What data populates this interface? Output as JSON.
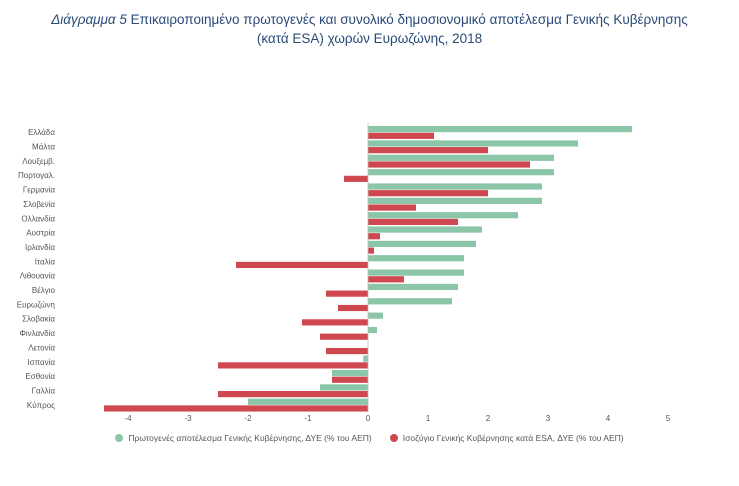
{
  "title": {
    "label": "Διάγραμμα 5",
    "line1": "Επικαιροποιημένο πρωτογενές και συνολικό δημοσιονομικό αποτέλεσμα Γενικής Κυβέρνησης",
    "line2": "(κατά ESA) χωρών Ευρωζώνης, 2018"
  },
  "colors": {
    "primary": "#8cc6a8",
    "overall": "#d0484f",
    "axis": "#aaaaaa",
    "tick_text": "#555555"
  },
  "chart_data": {
    "type": "bar",
    "orientation": "horizontal",
    "categories": [
      "Ελλάδα",
      "Μάλτα",
      "Λουξεμβ.",
      "Πορτογαλ.",
      "Γερμανία",
      "Σλοβενία",
      "Ολλανδία",
      "Αυστρία",
      "Ιρλανδία",
      "Ιταλία",
      "Λιθουανία",
      "Βέλγιο",
      "Ευρωζώνη",
      "Σλοβακία",
      "Φινλανδία",
      "Λετονία",
      "Ισπανία",
      "Εσθονία",
      "Γαλλία",
      "Κύπρος"
    ],
    "series": [
      {
        "name": "Πρωτογενές αποτέλεσμα Γενικής Κυβέρνησης, ΔΥΕ (% του ΑΕΠ)",
        "color": "#8cc6a8",
        "values": [
          4.4,
          3.5,
          3.1,
          3.1,
          2.9,
          2.9,
          2.5,
          1.9,
          1.8,
          1.6,
          1.6,
          1.5,
          1.4,
          0.25,
          0.15,
          0.0,
          -0.08,
          -0.6,
          -0.8,
          -2.0
        ]
      },
      {
        "name": "Ισοζύγιο Γενικής Κυβέρνησης κατά ESA, ΔΥΕ (% του ΑΕΠ)",
        "color": "#d0484f",
        "values": [
          1.1,
          2.0,
          2.7,
          -0.4,
          2.0,
          0.8,
          1.5,
          0.2,
          0.1,
          -2.2,
          0.6,
          -0.7,
          -0.5,
          -1.1,
          -0.8,
          -0.7,
          -2.5,
          -0.6,
          -2.5,
          -4.4
        ]
      }
    ],
    "xlim": [
      -4.5,
      5
    ],
    "xticks": [
      -4,
      -3,
      -2,
      -1,
      0,
      1,
      2,
      3,
      4,
      5
    ],
    "legend_position": "bottom",
    "grid": false
  }
}
